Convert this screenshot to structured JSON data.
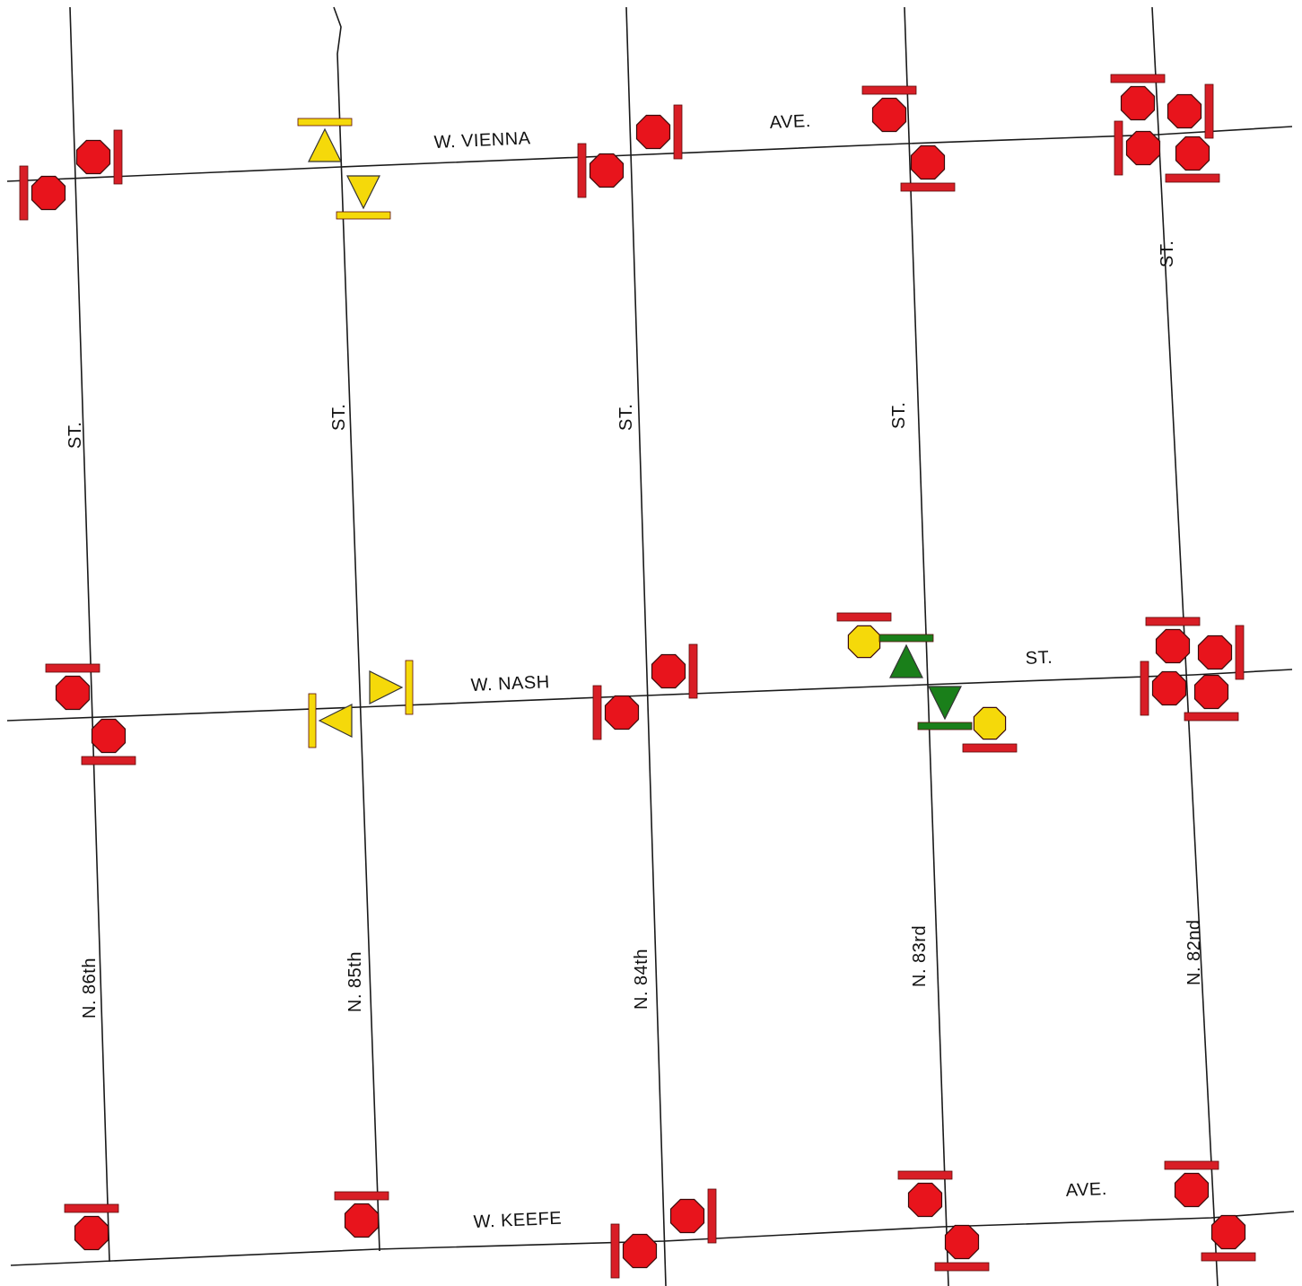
{
  "streets": {
    "horizontal": [
      {
        "id": "vienna",
        "words": [
          "W. VIENNA",
          "AVE."
        ]
      },
      {
        "id": "nash",
        "words": [
          "W. NASH",
          "ST."
        ]
      },
      {
        "id": "keefe",
        "words": [
          "W. KEEFE",
          "AVE."
        ]
      }
    ],
    "vertical": [
      {
        "id": "n86",
        "name": "N. 86th",
        "suffix": "ST."
      },
      {
        "id": "n85",
        "name": "N. 85th",
        "suffix": "ST."
      },
      {
        "id": "n84",
        "name": "N. 84th",
        "suffix": "ST."
      },
      {
        "id": "n83",
        "name": "N. 83rd",
        "suffix": "ST."
      },
      {
        "id": "n82",
        "name": "N. 82nd",
        "suffix": "ST."
      }
    ]
  },
  "legend_colors": {
    "stop_sign": "#e8141c",
    "stop_bar": "#d81e26",
    "yield_sign": "#f5d90a",
    "go_sign": "#1a7f1a",
    "road_line": "#1a1a1a"
  },
  "intersections": [
    {
      "street_h": "W. VIENNA",
      "street_v": "N. 86th",
      "control": "two-way-stop",
      "icons": [
        "stop-sign",
        "stop-sign"
      ]
    },
    {
      "street_h": "W. VIENNA",
      "street_v": "N. 85th",
      "control": "yield",
      "icons": [
        "yield-sign",
        "yield-sign"
      ]
    },
    {
      "street_h": "W. VIENNA",
      "street_v": "N. 84th",
      "control": "two-way-stop",
      "icons": [
        "stop-sign",
        "stop-sign"
      ]
    },
    {
      "street_h": "W. VIENNA",
      "street_v": "N. 83rd",
      "control": "two-way-stop",
      "icons": [
        "stop-sign",
        "stop-sign"
      ]
    },
    {
      "street_h": "W. VIENNA",
      "street_v": "N. 82nd",
      "control": "all-way-stop",
      "icons": [
        "stop-sign",
        "stop-sign",
        "stop-sign",
        "stop-sign"
      ]
    },
    {
      "street_h": "W. NASH",
      "street_v": "N. 86th",
      "control": "two-way-stop",
      "icons": [
        "stop-sign",
        "stop-sign"
      ]
    },
    {
      "street_h": "W. NASH",
      "street_v": "N. 85th",
      "control": "yield",
      "icons": [
        "yield-sign",
        "yield-sign"
      ]
    },
    {
      "street_h": "W. NASH",
      "street_v": "N. 84th",
      "control": "two-way-stop",
      "icons": [
        "stop-sign",
        "stop-sign"
      ]
    },
    {
      "street_h": "W. NASH",
      "street_v": "N. 83rd",
      "control": "signal",
      "icons": [
        "yellow-sign",
        "green-sign",
        "green-sign",
        "yellow-sign"
      ]
    },
    {
      "street_h": "W. NASH",
      "street_v": "N. 82nd",
      "control": "all-way-stop",
      "icons": [
        "stop-sign",
        "stop-sign",
        "stop-sign",
        "stop-sign"
      ]
    },
    {
      "street_h": "W. KEEFE",
      "street_v": "N. 86th",
      "control": "one-way-stop",
      "icons": [
        "stop-sign"
      ]
    },
    {
      "street_h": "W. KEEFE",
      "street_v": "N. 85th",
      "control": "one-way-stop",
      "icons": [
        "stop-sign"
      ]
    },
    {
      "street_h": "W. KEEFE",
      "street_v": "N. 84th",
      "control": "two-way-stop",
      "icons": [
        "stop-sign",
        "stop-sign"
      ]
    },
    {
      "street_h": "W. KEEFE",
      "street_v": "N. 83rd",
      "control": "two-way-stop",
      "icons": [
        "stop-sign",
        "stop-sign"
      ]
    },
    {
      "street_h": "W. KEEFE",
      "street_v": "N. 82nd",
      "control": "two-way-stop",
      "icons": [
        "stop-sign",
        "stop-sign"
      ]
    }
  ]
}
